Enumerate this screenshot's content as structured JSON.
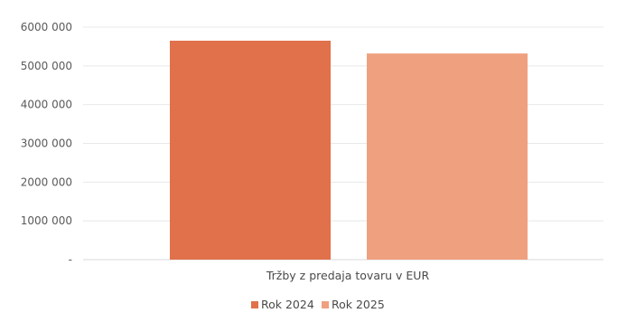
{
  "chart_data": {
    "type": "bar",
    "categories": [
      "Tržby z predaja tovaru v EUR"
    ],
    "series": [
      {
        "name": "Rok 2024",
        "values": [
          5650000
        ],
        "color": "#e0714a"
      },
      {
        "name": "Rok 2025",
        "values": [
          5320000
        ],
        "color": "#efa07f"
      }
    ],
    "ylim": [
      0,
      6000000
    ],
    "yticks": [
      0,
      1000000,
      2000000,
      3000000,
      4000000,
      5000000,
      6000000
    ],
    "ytick_labels": [
      "-",
      "1000 000",
      "2000 000",
      "3000 000",
      "4000 000",
      "5000 000",
      "6000 000"
    ],
    "grid": true,
    "legend_position": "bottom",
    "title": "",
    "xlabel": "",
    "ylabel": ""
  }
}
